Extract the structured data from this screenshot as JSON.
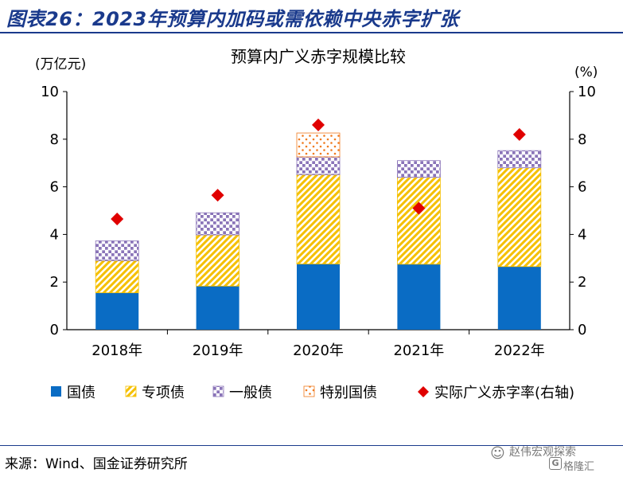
{
  "figure_title": "图表26：2023年预算内加码或需依赖中央赤字扩张",
  "source": "来源：Wind、国金证券研究所",
  "watermark": {
    "line1": "赵伟宏观探索",
    "line2": "格隆汇"
  },
  "colors": {
    "title_blue": "#1a3a8c",
    "guozhai": "#0a6cc4",
    "zhuanxiang": "#f5c000",
    "yiban": "#8a74b8",
    "tebie": "#f07a1e",
    "deficit_marker": "#e00000"
  },
  "chart_data": {
    "type": "bar",
    "stacked": true,
    "title": "预算内广义赤字规模比较",
    "ylabel_left": "(万亿元)",
    "ylabel_right": "(%)",
    "ylim_left": [
      0,
      10
    ],
    "ylim_right": [
      0,
      10
    ],
    "yticks": [
      0,
      2,
      4,
      6,
      8,
      10
    ],
    "categories": [
      "2018年",
      "2019年",
      "2020年",
      "2021年",
      "2022年"
    ],
    "series": [
      {
        "name": "国债",
        "axis": "left",
        "pattern": "solid",
        "values": [
          1.55,
          1.83,
          2.76,
          2.75,
          2.65
        ]
      },
      {
        "name": "专项债",
        "axis": "left",
        "pattern": "diagonal-hatch",
        "values": [
          1.35,
          2.15,
          3.75,
          3.65,
          4.15
        ]
      },
      {
        "name": "一般债",
        "axis": "left",
        "pattern": "checker",
        "values": [
          0.83,
          0.93,
          0.75,
          0.7,
          0.72
        ]
      },
      {
        "name": "特别国债",
        "axis": "left",
        "pattern": "dots",
        "values": [
          0,
          0,
          1.0,
          0,
          0
        ]
      },
      {
        "name": "实际广义赤字率(右轴)",
        "axis": "right",
        "type": "scatter",
        "marker": "diamond",
        "values": [
          4.65,
          5.65,
          8.6,
          5.1,
          8.2
        ]
      }
    ],
    "legend_position": "bottom",
    "grid": false
  }
}
